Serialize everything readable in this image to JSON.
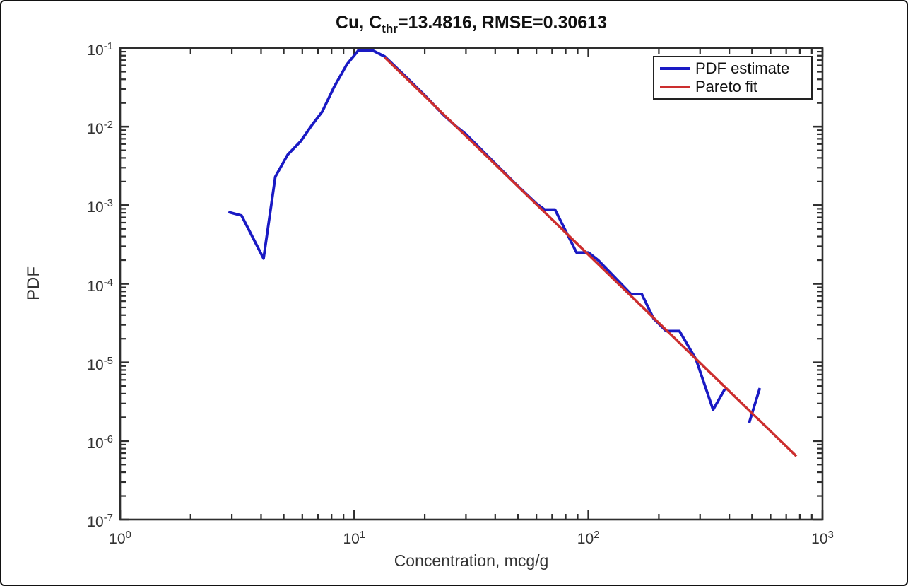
{
  "figure": {
    "title": {
      "pre": "Cu, C",
      "sub": "thr",
      "post": "=13.4816, RMSE=0.30613"
    }
  },
  "chart_data": {
    "type": "line",
    "title": "Cu, C_thr=13.4816, RMSE=0.30613",
    "xlabel": "Concentration, mcg/g",
    "ylabel": "PDF",
    "x_scale": "log",
    "y_scale": "log",
    "xlim": [
      1,
      1000
    ],
    "ylim": [
      1e-07,
      0.1
    ],
    "x_tick_labels": [
      "10^0",
      "10^1",
      "10^2",
      "10^3"
    ],
    "y_tick_labels": [
      "10^-1",
      "10^-2",
      "10^-3",
      "10^-4",
      "10^-5",
      "10^-6",
      "10^-7"
    ],
    "x_ticks_exponents": [
      0,
      1,
      2,
      3
    ],
    "y_ticks_exponents": [
      -1,
      -2,
      -3,
      -4,
      -5,
      -6,
      -7
    ],
    "grid": false,
    "legend_position": "top-right",
    "axis_color": "#2e2e2e",
    "c_threshold": 13.4816,
    "rmse": 0.30613,
    "series": [
      {
        "name": "PDF estimate",
        "color": "#1a1ac4",
        "line_width": 3.8,
        "segments": [
          [
            [
              2.9,
              0.00082
            ],
            [
              3.3,
              0.00074
            ],
            [
              4.1,
              0.00021
            ],
            [
              4.6,
              0.0023
            ],
            [
              5.2,
              0.0044
            ],
            [
              5.9,
              0.0065
            ],
            [
              6.6,
              0.0105
            ],
            [
              7.3,
              0.0155
            ],
            [
              8.2,
              0.032
            ],
            [
              9.3,
              0.062
            ],
            [
              10.4,
              0.093
            ],
            [
              12.0,
              0.093
            ],
            [
              13.5,
              0.078
            ],
            [
              16.5,
              0.044
            ],
            [
              20,
              0.025
            ],
            [
              24,
              0.0142
            ],
            [
              27,
              0.0103
            ],
            [
              30,
              0.008
            ],
            [
              40,
              0.0034
            ],
            [
              50,
              0.00175
            ],
            [
              60,
              0.00105
            ],
            [
              65,
              0.00088
            ],
            [
              72,
              0.00088
            ],
            [
              89,
              0.00025
            ],
            [
              100,
              0.00025
            ],
            [
              110,
              0.0002
            ],
            [
              130,
              0.00012
            ],
            [
              152,
              7.4e-05
            ],
            [
              169,
              7.4e-05
            ],
            [
              190,
              3.6e-05
            ],
            [
              215,
              2.5e-05
            ],
            [
              245,
              2.5e-05
            ],
            [
              288,
              1.1e-05
            ],
            [
              341,
              2.5e-06
            ],
            [
              383,
              4.6e-06
            ]
          ],
          [
            [
              486,
              1.7e-06
            ],
            [
              540,
              4.7e-06
            ]
          ]
        ]
      },
      {
        "name": "Pareto fit",
        "color": "#cc2e2e",
        "line_width": 3.5,
        "segments": [
          [
            [
              13.5,
              0.076
            ],
            [
              774,
              6.4e-07
            ]
          ]
        ]
      }
    ]
  }
}
